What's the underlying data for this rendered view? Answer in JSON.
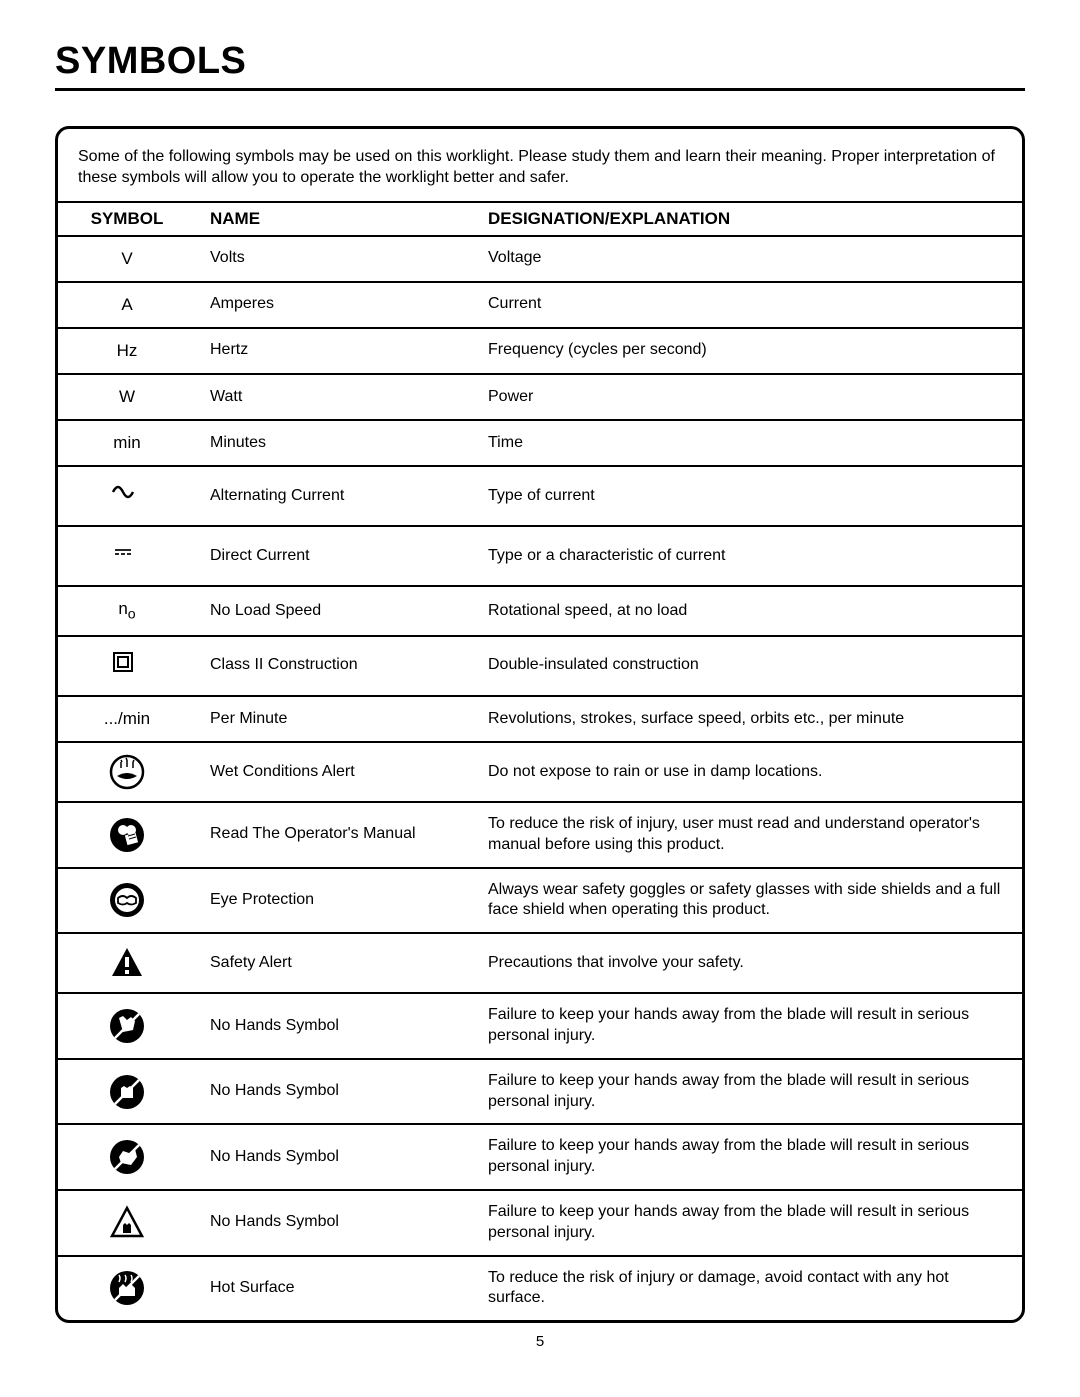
{
  "title": "SYMBOLS",
  "intro": "Some of the following symbols may be used on this worklight. Please study them and learn their meaning. Proper interpretation of these symbols will allow you to operate the worklight better and safer.",
  "headers": {
    "symbol": "SYMBOL",
    "name": "NAME",
    "explanation": "DESIGNATION/EXPLANATION"
  },
  "rows": [
    {
      "symbol_type": "text",
      "symbol_text": "V",
      "name": "Volts",
      "explanation": "Voltage"
    },
    {
      "symbol_type": "text",
      "symbol_text": "A",
      "name": "Amperes",
      "explanation": "Current"
    },
    {
      "symbol_type": "text",
      "symbol_text": "Hz",
      "name": "Hertz",
      "explanation": "Frequency (cycles per second)"
    },
    {
      "symbol_type": "text",
      "symbol_text": "W",
      "name": "Watt",
      "explanation": "Power"
    },
    {
      "symbol_type": "text",
      "symbol_text": "min",
      "name": "Minutes",
      "explanation": "Time"
    },
    {
      "symbol_type": "svg",
      "svg_id": "ac-wave",
      "name": "Alternating Current",
      "explanation": "Type of current"
    },
    {
      "symbol_type": "svg",
      "svg_id": "dc-line",
      "name": "Direct Current",
      "explanation": "Type or a characteristic of current"
    },
    {
      "symbol_type": "html",
      "symbol_html": "n<sub>o</sub>",
      "name": "No Load Speed",
      "explanation": "Rotational speed, at no load"
    },
    {
      "symbol_type": "svg",
      "svg_id": "class2",
      "name": "Class II Construction",
      "explanation": "Double-insulated construction"
    },
    {
      "symbol_type": "text",
      "symbol_text": ".../min",
      "name": "Per Minute",
      "explanation": "Revolutions, strokes, surface speed, orbits etc., per minute"
    },
    {
      "symbol_type": "svg",
      "svg_id": "wet-alert",
      "name": "Wet Conditions Alert",
      "explanation": "Do not expose to rain or use in damp locations."
    },
    {
      "symbol_type": "svg",
      "svg_id": "read-manual",
      "name": "Read The Operator's Manual",
      "explanation": "To reduce the risk of injury, user must read and understand operator's manual before using this product."
    },
    {
      "symbol_type": "svg",
      "svg_id": "eye-protection",
      "name": "Eye Protection",
      "explanation": "Always wear safety goggles or safety glasses with side shields and a full face shield when operating this product."
    },
    {
      "symbol_type": "svg",
      "svg_id": "safety-alert",
      "name": "Safety Alert",
      "explanation": "Precautions that involve your safety."
    },
    {
      "symbol_type": "svg",
      "svg_id": "no-hands-1",
      "name": "No Hands Symbol",
      "explanation": "Failure to keep your hands away from the blade will result in serious personal injury."
    },
    {
      "symbol_type": "svg",
      "svg_id": "no-hands-2",
      "name": "No Hands Symbol",
      "explanation": "Failure to keep your hands away from the blade will result in serious personal injury."
    },
    {
      "symbol_type": "svg",
      "svg_id": "no-hands-3",
      "name": "No Hands Symbol",
      "explanation": "Failure to keep your hands away from the blade will result in serious personal injury."
    },
    {
      "symbol_type": "svg",
      "svg_id": "no-hands-tri",
      "name": "No Hands Symbol",
      "explanation": "Failure to keep your hands away from the blade will result in serious personal injury."
    },
    {
      "symbol_type": "svg",
      "svg_id": "hot-surface",
      "name": "Hot Surface",
      "explanation": "To reduce the risk of injury or damage, avoid contact with any hot surface."
    }
  ],
  "page_number": "5",
  "colors": {
    "text": "#000000",
    "bg": "#ffffff",
    "border": "#000000"
  }
}
